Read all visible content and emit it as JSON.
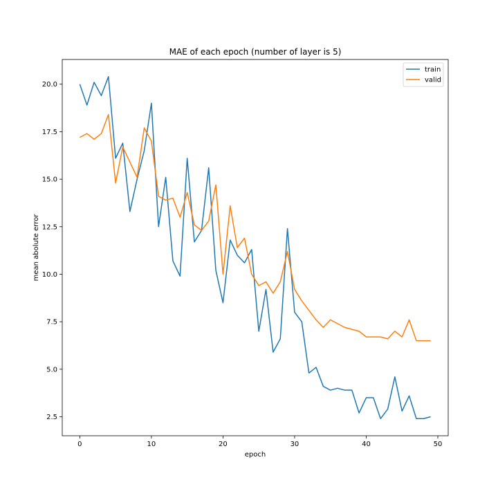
{
  "chart_data": {
    "type": "line",
    "title": "MAE of each epoch (number of layer is 5)",
    "xlabel": "epoch",
    "ylabel": "mean abolute error",
    "xlim": [
      -2.45,
      51.45
    ],
    "ylim": [
      1.5,
      21.3
    ],
    "xticks": [
      0,
      10,
      20,
      30,
      40,
      50
    ],
    "yticks": [
      2.5,
      5.0,
      7.5,
      10.0,
      12.5,
      15.0,
      17.5,
      20.0
    ],
    "ytick_labels": [
      "2.5",
      "5.0",
      "7.5",
      "10.0",
      "12.5",
      "15.0",
      "17.5",
      "20.0"
    ],
    "grid": false,
    "legend_position": "top-right",
    "x": [
      0,
      1,
      2,
      3,
      4,
      5,
      6,
      7,
      8,
      9,
      10,
      11,
      12,
      13,
      14,
      15,
      16,
      17,
      18,
      19,
      20,
      21,
      22,
      23,
      24,
      25,
      26,
      27,
      28,
      29,
      30,
      31,
      32,
      33,
      34,
      35,
      36,
      37,
      38,
      39,
      40,
      41,
      42,
      43,
      44,
      45,
      46,
      47,
      48,
      49
    ],
    "series": [
      {
        "name": "train",
        "color": "#1f77b4",
        "values": [
          20.0,
          18.9,
          20.1,
          19.4,
          20.4,
          16.1,
          16.9,
          13.3,
          15.0,
          16.5,
          19.0,
          12.5,
          15.1,
          10.7,
          9.9,
          16.1,
          11.7,
          12.3,
          15.6,
          10.2,
          8.5,
          11.8,
          11.0,
          10.6,
          11.3,
          7.0,
          9.2,
          5.9,
          6.6,
          12.4,
          8.0,
          7.5,
          4.8,
          5.1,
          4.1,
          3.9,
          4.0,
          3.9,
          3.9,
          2.7,
          3.5,
          3.5,
          2.4,
          2.9,
          4.6,
          2.8,
          3.6,
          2.4,
          2.4,
          2.5
        ]
      },
      {
        "name": "valid",
        "color": "#ff7f0e",
        "values": [
          17.2,
          17.4,
          17.1,
          17.4,
          18.4,
          14.8,
          16.7,
          15.9,
          15.1,
          17.7,
          17.0,
          14.1,
          13.9,
          14.0,
          13.0,
          14.3,
          12.6,
          12.3,
          12.8,
          14.7,
          10.0,
          13.6,
          11.4,
          11.9,
          10.0,
          9.4,
          9.6,
          9.0,
          9.6,
          11.2,
          9.2,
          8.6,
          8.1,
          7.6,
          7.2,
          7.6,
          7.4,
          7.2,
          7.1,
          7.0,
          6.7,
          6.7,
          6.7,
          6.6,
          7.0,
          6.7,
          7.6,
          6.5,
          6.5,
          6.5
        ]
      }
    ]
  }
}
